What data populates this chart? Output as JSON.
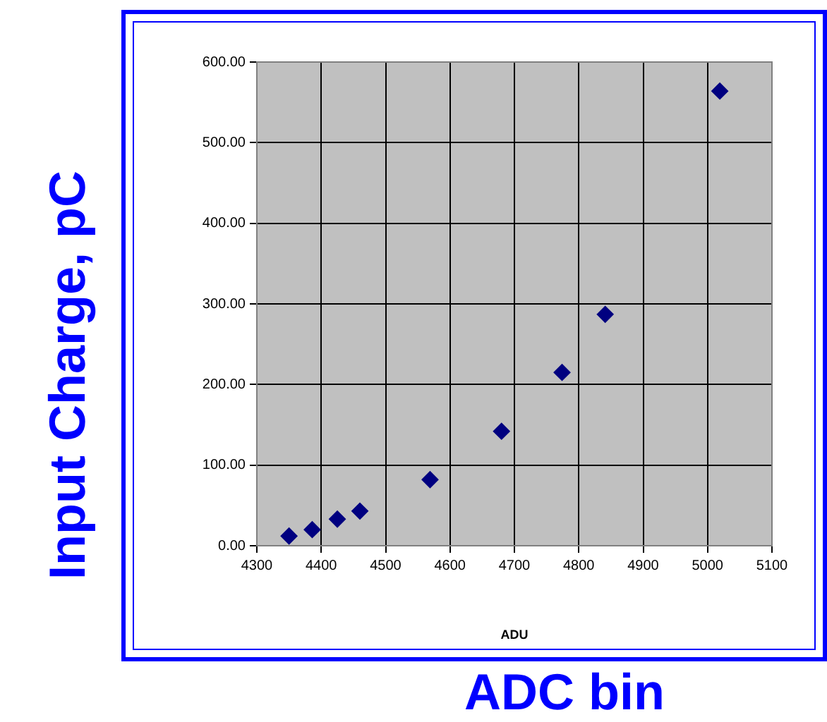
{
  "chart_data": {
    "type": "scatter",
    "xlabel": "ADU",
    "ylabel": "Input Charge, pC",
    "annotations": [
      "ADC bin"
    ],
    "x": [
      4350,
      4386,
      4425,
      4460,
      4569,
      4680,
      4774,
      4841,
      5019
    ],
    "series": [
      {
        "color": "#000080",
        "values": [
          12,
          20,
          33,
          43,
          82,
          142,
          215,
          287,
          564
        ]
      }
    ],
    "xlim": [
      4300,
      5100
    ],
    "xticks": [
      4300,
      4400,
      4500,
      4600,
      4700,
      4800,
      4900,
      5000,
      5100
    ],
    "ylim": [
      0,
      600
    ],
    "yticks": [
      {
        "value": 0,
        "label": "0.00"
      },
      {
        "value": 100,
        "label": "100.00"
      },
      {
        "value": 200,
        "label": "200.00"
      },
      {
        "value": 300,
        "label": "300.00"
      },
      {
        "value": 400,
        "label": "400.00"
      },
      {
        "value": 500,
        "label": "500.00"
      },
      {
        "value": 600,
        "label": "600.00"
      }
    ],
    "grid": true,
    "legend": false,
    "marker": "diamond"
  }
}
